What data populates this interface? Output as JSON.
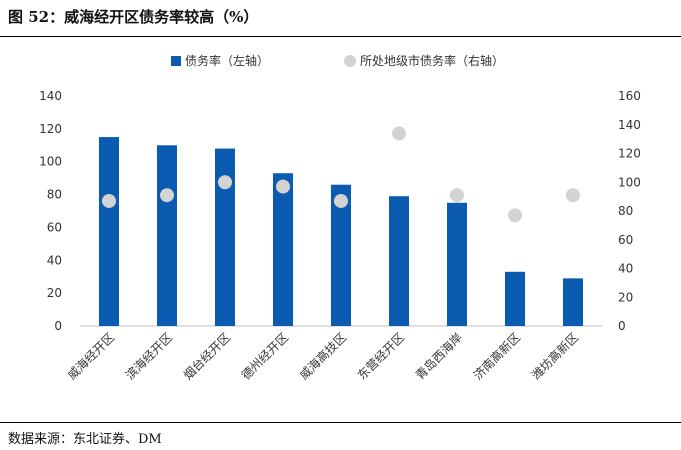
{
  "figure": {
    "title": "图 52：威海经开区债务率较高（%）",
    "source": "数据来源：东北证券、DM"
  },
  "colors": {
    "bar": "#0B5BB0",
    "dot": "#D3D3D3"
  },
  "chart_data": {
    "type": "bar",
    "title": "",
    "xlabel": "",
    "categories": [
      "威海经开区",
      "滨海经开区",
      "烟台经开区",
      "德州经开区",
      "威海高技区",
      "东营经开区",
      "青岛西海岸",
      "济南高新区",
      "潍坊高新区"
    ],
    "series": [
      {
        "name": "债务率（左轴）",
        "kind": "bar",
        "axis": "left",
        "values": [
          115,
          110,
          108,
          93,
          86,
          79,
          75,
          33,
          29
        ]
      },
      {
        "name": "所处地级市债务率（右轴）",
        "kind": "scatter",
        "axis": "right",
        "values": [
          87,
          91,
          100,
          97,
          87,
          134,
          91,
          77,
          91
        ]
      }
    ],
    "y_left": {
      "min": 0,
      "max": 140,
      "ticks": [
        0,
        20,
        40,
        60,
        80,
        100,
        120,
        140
      ]
    },
    "y_right": {
      "min": 0,
      "max": 160,
      "ticks": [
        0,
        20,
        40,
        60,
        80,
        100,
        120,
        140,
        160
      ]
    },
    "grid": false,
    "legend": "top-center"
  }
}
